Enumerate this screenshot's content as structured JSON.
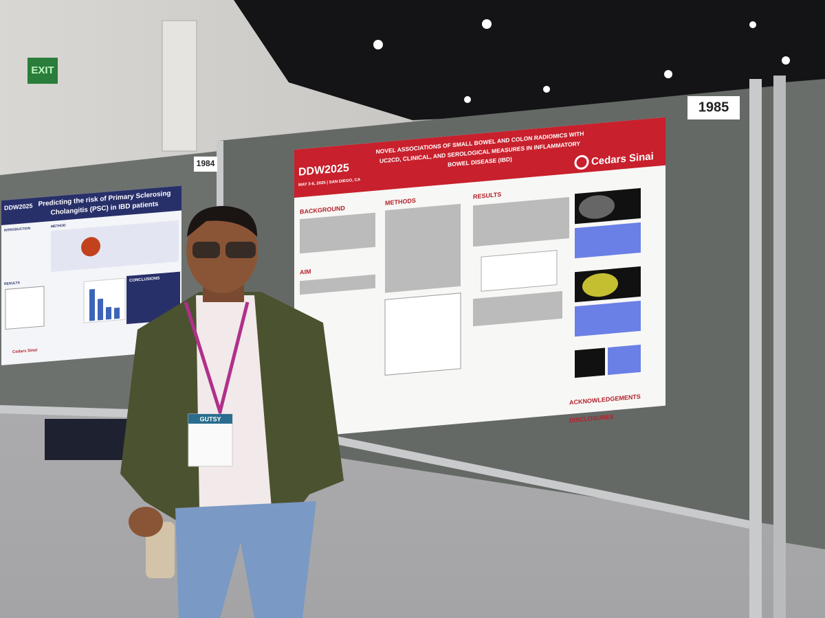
{
  "exit_sign": "EXIT",
  "board_numbers": [
    "1985",
    "1984"
  ],
  "main_poster": {
    "logo": "DDW2025",
    "dates": "MAY 3-6, 2025 | SAN DIEGO, CA",
    "title_lines": [
      "NOVEL ASSOCIATIONS OF SMALL BOWEL AND COLON RADIOMICS WITH",
      "UC2CD, CLINICAL, AND SEROLOGICAL MEASURES IN INFLAMMATORY",
      "BOWEL DISEASE (IBD)"
    ],
    "institution": "Cedars Sinai",
    "sections": [
      "BACKGROUND",
      "METHODS",
      "AIM",
      "RESULTS",
      "ACKNOWLEDGEMENTS",
      "DISCLOSURES"
    ]
  },
  "left_poster": {
    "logo": "DDW2025",
    "title_lines": [
      "Predicting the risk of Primary Sclerosing",
      "Cholangitis (PSC) in IBD patients"
    ],
    "sections": [
      "INTRODUCTION",
      "METHOD",
      "RESULTS",
      "CONCLUSIONS"
    ],
    "institution": "Cedars Sinai"
  },
  "badge": "GUTSY"
}
